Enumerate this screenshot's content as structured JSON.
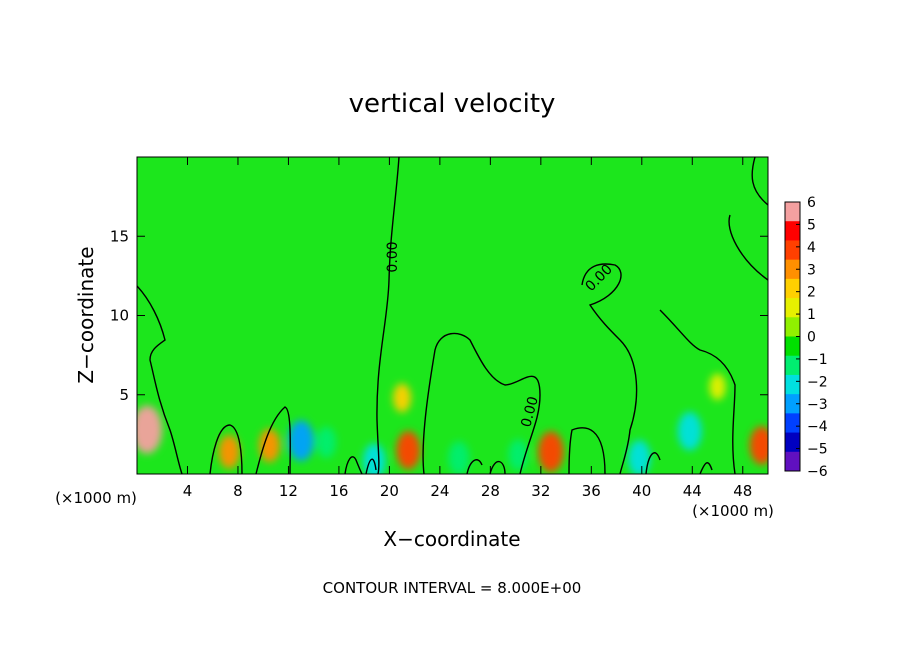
{
  "chart_data": {
    "type": "heatmap",
    "title": "vertical velocity",
    "xlabel": "X−coordinate",
    "ylabel": "Z−coordinate",
    "x_unit_left": "(×1000 m)",
    "x_unit_right": "(×1000 m)",
    "footer": "CONTOUR INTERVAL = 8.000E+00",
    "contour_label": "0.00",
    "xlim": [
      0,
      50
    ],
    "ylim": [
      0,
      20
    ],
    "x_ticks": [
      4,
      8,
      12,
      16,
      20,
      24,
      28,
      32,
      36,
      40,
      44,
      48
    ],
    "y_ticks": [
      5,
      10,
      15
    ],
    "colorbar": {
      "ticks": [
        6,
        5,
        4,
        3,
        2,
        1,
        0,
        -1,
        -2,
        -3,
        -4,
        -5,
        -6
      ],
      "tick_labels": [
        "6",
        "5",
        "4",
        "3",
        "2",
        "1",
        "0",
        "−1",
        "−2",
        "−3",
        "−4",
        "−5",
        "−6"
      ],
      "colors": [
        "#f4a0a0",
        "#ff0000",
        "#ff4000",
        "#ff9000",
        "#ffd000",
        "#e6f000",
        "#90f000",
        "#00e000",
        "#00ee70",
        "#00e0e0",
        "#00a0ff",
        "#0040ff",
        "#0000c0",
        "#6010c0"
      ]
    },
    "background_color": "#1ce61c",
    "features": [
      {
        "x": 0.8,
        "z": 2.8,
        "value": 5.5
      },
      {
        "x": 7.3,
        "z": 1.4,
        "value": 2.5
      },
      {
        "x": 10.5,
        "z": 1.8,
        "value": 2.5
      },
      {
        "x": 13.0,
        "z": 2.1,
        "value": -4.0
      },
      {
        "x": 15.0,
        "z": 2.0,
        "value": -2.0
      },
      {
        "x": 18.8,
        "z": 0.8,
        "value": -3.0
      },
      {
        "x": 21.5,
        "z": 1.5,
        "value": 3.5
      },
      {
        "x": 21.0,
        "z": 4.8,
        "value": 1.5
      },
      {
        "x": 25.5,
        "z": 1.0,
        "value": -2.5
      },
      {
        "x": 30.2,
        "z": 1.2,
        "value": -2.0
      },
      {
        "x": 32.8,
        "z": 1.4,
        "value": 4.0
      },
      {
        "x": 39.8,
        "z": 1.0,
        "value": -3.0
      },
      {
        "x": 43.8,
        "z": 2.7,
        "value": -3.5
      },
      {
        "x": 46.0,
        "z": 5.5,
        "value": 1.0
      },
      {
        "x": 49.5,
        "z": 1.8,
        "value": 3.5
      }
    ]
  }
}
